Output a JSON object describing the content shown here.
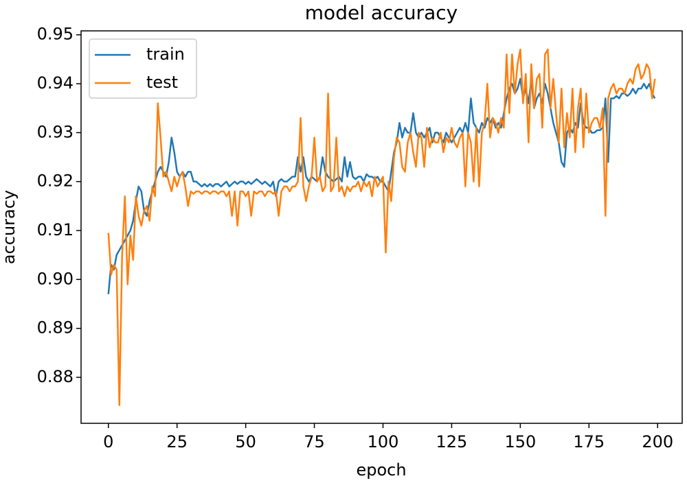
{
  "chart_data": {
    "type": "line",
    "title": "model accuracy",
    "x_label": "epoch",
    "y_label": "accuracy",
    "legend": "upper left",
    "grid": false,
    "xlim": [
      -9.95,
      208.95
    ],
    "ylim": [
      0.8706,
      0.9508
    ],
    "xticks": [
      0,
      25,
      50,
      75,
      100,
      125,
      150,
      175,
      200
    ],
    "yticks": [
      0.88,
      0.89,
      {
        "value": 0.9,
        "label": "0.90"
      },
      0.91,
      0.92,
      0.93,
      0.94,
      0.95
    ],
    "x": [
      0,
      1,
      2,
      3,
      4,
      5,
      6,
      7,
      8,
      9,
      10,
      11,
      12,
      13,
      14,
      15,
      16,
      17,
      18,
      19,
      20,
      21,
      22,
      23,
      24,
      25,
      26,
      27,
      28,
      29,
      30,
      31,
      32,
      33,
      34,
      35,
      36,
      37,
      38,
      39,
      40,
      41,
      42,
      43,
      44,
      45,
      46,
      47,
      48,
      49,
      50,
      51,
      52,
      53,
      54,
      55,
      56,
      57,
      58,
      59,
      60,
      61,
      62,
      63,
      64,
      65,
      66,
      67,
      68,
      69,
      70,
      71,
      72,
      73,
      74,
      75,
      76,
      77,
      78,
      79,
      80,
      81,
      82,
      83,
      84,
      85,
      86,
      87,
      88,
      89,
      90,
      91,
      92,
      93,
      94,
      95,
      96,
      97,
      98,
      99,
      100,
      101,
      102,
      103,
      104,
      105,
      106,
      107,
      108,
      109,
      110,
      111,
      112,
      113,
      114,
      115,
      116,
      117,
      118,
      119,
      120,
      121,
      122,
      123,
      124,
      125,
      126,
      127,
      128,
      129,
      130,
      131,
      132,
      133,
      134,
      135,
      136,
      137,
      138,
      139,
      140,
      141,
      142,
      143,
      144,
      145,
      146,
      147,
      148,
      149,
      150,
      151,
      152,
      153,
      154,
      155,
      156,
      157,
      158,
      159,
      160,
      161,
      162,
      163,
      164,
      165,
      166,
      167,
      168,
      169,
      170,
      171,
      172,
      173,
      174,
      175,
      176,
      177,
      178,
      179,
      180,
      181,
      182,
      183,
      184,
      185,
      186,
      187,
      188,
      189,
      190,
      191,
      192,
      193,
      194,
      195,
      196,
      197,
      198,
      199
    ],
    "series": [
      {
        "name": "train",
        "color": "#1f77b4",
        "values": [
          0.897,
          0.903,
          0.902,
          0.905,
          0.906,
          0.907,
          0.908,
          0.909,
          0.91,
          0.912,
          0.916,
          0.919,
          0.918,
          0.914,
          0.913,
          0.916,
          0.918,
          0.92,
          0.922,
          0.923,
          0.922,
          0.921,
          0.924,
          0.929,
          0.926,
          0.922,
          0.921,
          0.922,
          0.921,
          0.922,
          0.922,
          0.92,
          0.92,
          0.9195,
          0.919,
          0.9195,
          0.919,
          0.9195,
          0.919,
          0.9195,
          0.9195,
          0.919,
          0.9195,
          0.92,
          0.919,
          0.9195,
          0.92,
          0.9195,
          0.92,
          0.92,
          0.9195,
          0.92,
          0.9195,
          0.92,
          0.9205,
          0.92,
          0.9195,
          0.92,
          0.9195,
          0.919,
          0.92,
          0.917,
          0.92,
          0.9205,
          0.92,
          0.92,
          0.9205,
          0.921,
          0.921,
          0.925,
          0.922,
          0.925,
          0.921,
          0.92,
          0.921,
          0.9205,
          0.92,
          0.921,
          0.925,
          0.922,
          0.921,
          0.9205,
          0.92,
          0.9205,
          0.921,
          0.92,
          0.925,
          0.921,
          0.924,
          0.921,
          0.9205,
          0.921,
          0.921,
          0.92,
          0.9215,
          0.921,
          0.921,
          0.9205,
          0.921,
          0.92,
          0.92,
          0.919,
          0.918,
          0.922,
          0.926,
          0.928,
          0.932,
          0.929,
          0.931,
          0.93,
          0.93,
          0.934,
          0.93,
          0.929,
          0.93,
          0.929,
          0.93,
          0.931,
          0.928,
          0.93,
          0.93,
          0.929,
          0.928,
          0.93,
          0.929,
          0.928,
          0.929,
          0.93,
          0.931,
          0.93,
          0.932,
          0.93,
          0.937,
          0.932,
          0.931,
          0.93,
          0.932,
          0.931,
          0.933,
          0.932,
          0.933,
          0.931,
          0.932,
          0.931,
          0.934,
          0.937,
          0.939,
          0.94,
          0.938,
          0.939,
          0.941,
          0.937,
          0.939,
          0.936,
          0.941,
          0.935,
          0.937,
          0.938,
          0.936,
          0.94,
          0.938,
          0.935,
          0.932,
          0.93,
          0.928,
          0.924,
          0.923,
          0.93,
          0.931,
          0.93,
          0.932,
          0.931,
          0.936,
          0.932,
          0.931,
          0.931,
          0.93,
          0.93,
          0.9305,
          0.9305,
          0.931,
          0.937,
          0.924,
          0.937,
          0.937,
          0.9375,
          0.937,
          0.938,
          0.938,
          0.9375,
          0.938,
          0.939,
          0.938,
          0.939,
          0.939,
          0.94,
          0.939,
          0.94,
          0.938,
          0.937
        ]
      },
      {
        "name": "test",
        "color": "#ff7f0e",
        "values": [
          0.9095,
          0.901,
          0.903,
          0.902,
          0.8743,
          0.905,
          0.917,
          0.899,
          0.909,
          0.904,
          0.917,
          0.913,
          0.911,
          0.914,
          0.915,
          0.912,
          0.919,
          0.917,
          0.936,
          0.929,
          0.921,
          0.922,
          0.92,
          0.918,
          0.921,
          0.919,
          0.921,
          0.922,
          0.919,
          0.915,
          0.918,
          0.9175,
          0.918,
          0.918,
          0.9175,
          0.918,
          0.918,
          0.9175,
          0.918,
          0.918,
          0.9175,
          0.918,
          0.918,
          0.917,
          0.918,
          0.913,
          0.918,
          0.911,
          0.918,
          0.918,
          0.917,
          0.918,
          0.913,
          0.918,
          0.9175,
          0.918,
          0.918,
          0.917,
          0.918,
          0.918,
          0.9175,
          0.918,
          0.913,
          0.918,
          0.919,
          0.919,
          0.918,
          0.919,
          0.919,
          0.92,
          0.933,
          0.919,
          0.916,
          0.919,
          0.921,
          0.929,
          0.92,
          0.921,
          0.918,
          0.919,
          0.938,
          0.918,
          0.919,
          0.929,
          0.918,
          0.919,
          0.917,
          0.919,
          0.918,
          0.919,
          0.919,
          0.92,
          0.918,
          0.92,
          0.919,
          0.92,
          0.917,
          0.921,
          0.919,
          0.92,
          0.921,
          0.9055,
          0.92,
          0.916,
          0.925,
          0.929,
          0.928,
          0.923,
          0.922,
          0.928,
          0.93,
          0.926,
          0.923,
          0.93,
          0.929,
          0.923,
          0.931,
          0.927,
          0.929,
          0.928,
          0.928,
          0.93,
          0.926,
          0.929,
          0.928,
          0.931,
          0.928,
          0.927,
          0.929,
          0.93,
          0.919,
          0.93,
          0.928,
          0.92,
          0.931,
          0.919,
          0.93,
          0.932,
          0.94,
          0.929,
          0.933,
          0.932,
          0.93,
          0.933,
          0.931,
          0.946,
          0.934,
          0.946,
          0.938,
          0.944,
          0.947,
          0.936,
          0.942,
          0.928,
          0.944,
          0.935,
          0.941,
          0.942,
          0.931,
          0.946,
          0.947,
          0.935,
          0.941,
          0.934,
          0.928,
          0.939,
          0.927,
          0.934,
          0.929,
          0.939,
          0.926,
          0.935,
          0.939,
          0.927,
          0.938,
          0.93,
          0.932,
          0.933,
          0.933,
          0.931,
          0.935,
          0.913,
          0.937,
          0.939,
          0.94,
          0.938,
          0.939,
          0.939,
          0.938,
          0.94,
          0.941,
          0.94,
          0.943,
          0.944,
          0.941,
          0.942,
          0.944,
          0.943,
          0.937,
          0.941
        ]
      }
    ]
  }
}
